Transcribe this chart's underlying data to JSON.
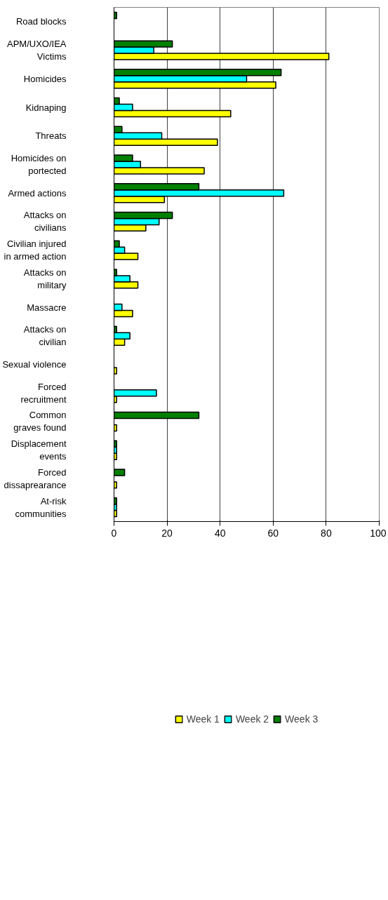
{
  "chart_data": {
    "type": "bar",
    "orientation": "horizontal",
    "categories": [
      "Road blocks",
      "APM/UXO/IEA\nVictims",
      "Homicides",
      "Kidnaping",
      "Threats",
      "Homicides on\nportected",
      "Armed actions",
      "Attacks on\ncivilians",
      "Civilian injured\nin armed action",
      "Attacks on\nmilitary",
      "Massacre",
      "Attacks on\ncivilian",
      "Sexual violence",
      "Forced\nrecruitment",
      "Common\ngraves found",
      "Displacement\nevents",
      "Forced\ndissaprearance",
      "At-risk\ncommunities"
    ],
    "series": [
      {
        "name": "Week 1",
        "color": "#ffff00",
        "values": [
          null,
          81,
          61,
          44,
          39,
          34,
          19,
          12,
          9,
          9,
          7,
          4,
          1,
          1,
          1,
          1,
          1,
          1
        ]
      },
      {
        "name": "Week 2",
        "color": "#00ffff",
        "values": [
          null,
          15,
          50,
          7,
          18,
          10,
          64,
          17,
          4,
          6,
          3,
          6,
          null,
          16,
          null,
          1,
          null,
          1
        ]
      },
      {
        "name": "Week 3",
        "color": "#008000",
        "values": [
          1,
          22,
          63,
          2,
          3,
          7,
          32,
          22,
          2,
          1,
          null,
          1,
          null,
          null,
          32,
          1,
          4,
          1
        ]
      }
    ],
    "xlim": [
      0,
      100
    ],
    "xticks": [
      0,
      20,
      40,
      60,
      80,
      100
    ],
    "grid": "x",
    "legend": "bottom"
  }
}
